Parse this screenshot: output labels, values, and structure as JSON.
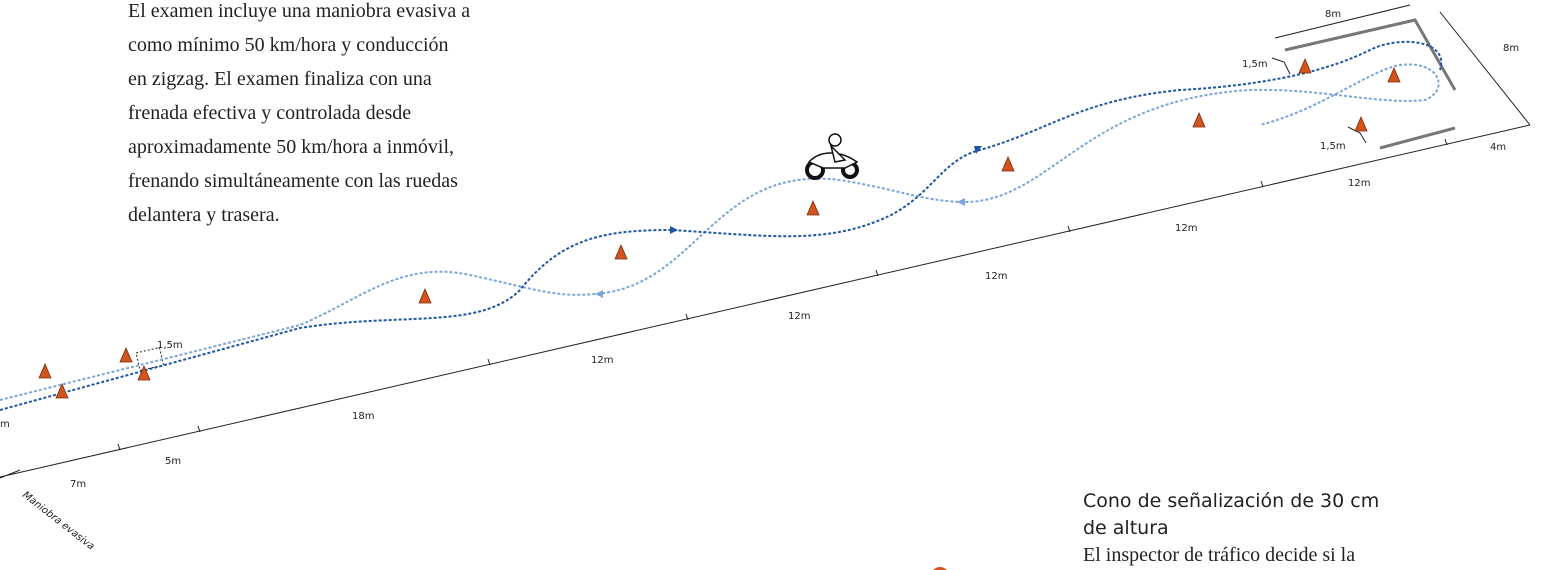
{
  "intro": {
    "lines": [
      "El examen incluye una maniobra evasiva a",
      "como mínimo 50 km/hora y conducción",
      "en zigzag. El examen finaliza con una",
      "frenada efectiva y controlada desde",
      "aproximadamente 50 km/hora a inmóvil,",
      "frenando simultáneamente con las ruedas",
      "delantera y trasera."
    ]
  },
  "labels": [
    "8m",
    "8m",
    "1,5m",
    "1,5m",
    "4m",
    "12m",
    "12m",
    "12m",
    "12m",
    "12m",
    "18m",
    "5m",
    "7m",
    "m",
    "1,5m"
  ],
  "side_label": "Maniobra evasiva",
  "cone_note": {
    "title_lines": [
      "Cono de señalización de 30 cm",
      "de altura"
    ],
    "body": "El inspector de tráfico decide si la"
  }
}
